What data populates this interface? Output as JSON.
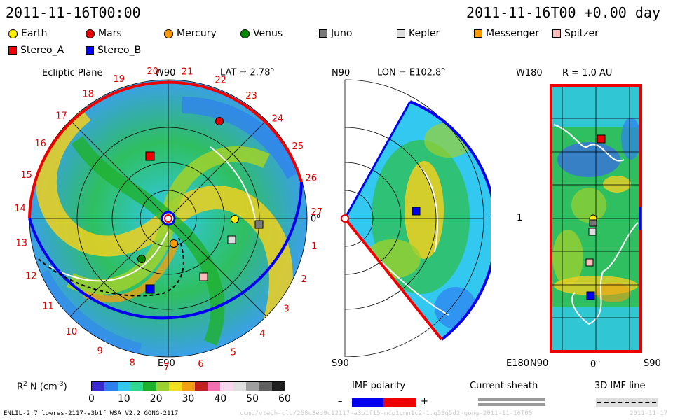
{
  "header": {
    "date_left": "2011-11-16T00:00",
    "date_right": "2011-11-16T00 +0.00 day"
  },
  "legend": [
    {
      "name": "Earth",
      "shape": "circle",
      "color": "#ffee00"
    },
    {
      "name": "Mars",
      "shape": "circle",
      "color": "#e00000"
    },
    {
      "name": "Mercury",
      "shape": "circle",
      "color": "#ff9900"
    },
    {
      "name": "Venus",
      "shape": "circle",
      "color": "#008800"
    },
    {
      "name": "Juno",
      "shape": "square",
      "color": "#777777"
    },
    {
      "name": "Kepler",
      "shape": "square",
      "color": "#dddddd"
    },
    {
      "name": "Messenger",
      "shape": "square",
      "color": "#ff9900"
    },
    {
      "name": "Spitzer",
      "shape": "square",
      "color": "#ffbbbb"
    },
    {
      "name": "Stereo_A",
      "shape": "square",
      "color": "#ee0000"
    },
    {
      "name": "Stereo_B",
      "shape": "square",
      "color": "#0000ee"
    }
  ],
  "panel1": {
    "title": "Ecliptic Plane",
    "top_label": "W90",
    "lat_label": "LAT = 2.78",
    "deg": "o",
    "bottom_label": "E90",
    "right_label": "0",
    "numbers": [
      "20",
      "21",
      "22",
      "23",
      "24",
      "25",
      "26",
      "27",
      "1",
      "2",
      "3",
      "4",
      "5",
      "6",
      "7",
      "8",
      "9",
      "10",
      "11",
      "12",
      "13",
      "14",
      "15",
      "16",
      "17",
      "18",
      "19"
    ]
  },
  "panel2": {
    "top_left": "N90",
    "lon_label": "LON = E102.8",
    "deg": "o",
    "bottom_left": "S90",
    "right_label": "0"
  },
  "panel3": {
    "top_left": "W180",
    "r_label": "R = 1.0 AU",
    "mid_left": "1",
    "bottom_left": "E180",
    "bottom_n": "N90",
    "bottom_zero": "0",
    "bottom_s": "S90"
  },
  "colorbar": {
    "label": "R",
    "label_sup": "2",
    "label_rest": "N (cm",
    "label_exp": "-3",
    "ticks": [
      "0",
      "10",
      "20",
      "30",
      "40",
      "50",
      "60"
    ],
    "colors": [
      "#3a2bd0",
      "#2f7ff0",
      "#32c8f0",
      "#2fd890",
      "#1fb030",
      "#9ad030",
      "#f0e020",
      "#f0a010",
      "#c02020",
      "#f070b0",
      "#f8d8ec",
      "#e0e0e0",
      "#a0a0a0",
      "#606060",
      "#202020"
    ]
  },
  "imf": {
    "title": "IMF polarity",
    "minus": "–",
    "plus": "+",
    "neg_color": "#0000ee",
    "pos_color": "#ee0000"
  },
  "sheath": {
    "title": "Current sheath"
  },
  "imf3d": {
    "title": "3D IMF line"
  },
  "footer": {
    "model": "ENLIL-2.7 lowres-2117-a3b1f WSA_V2.2 GONG-2117",
    "watermark": "ccmc/vtech-cld/258c3ed9c12117-a3b1f15-mcp1umn1c2-1.g53q5d2-gong-2011-11-16T00",
    "watermark_right": "2011-11-17"
  }
}
